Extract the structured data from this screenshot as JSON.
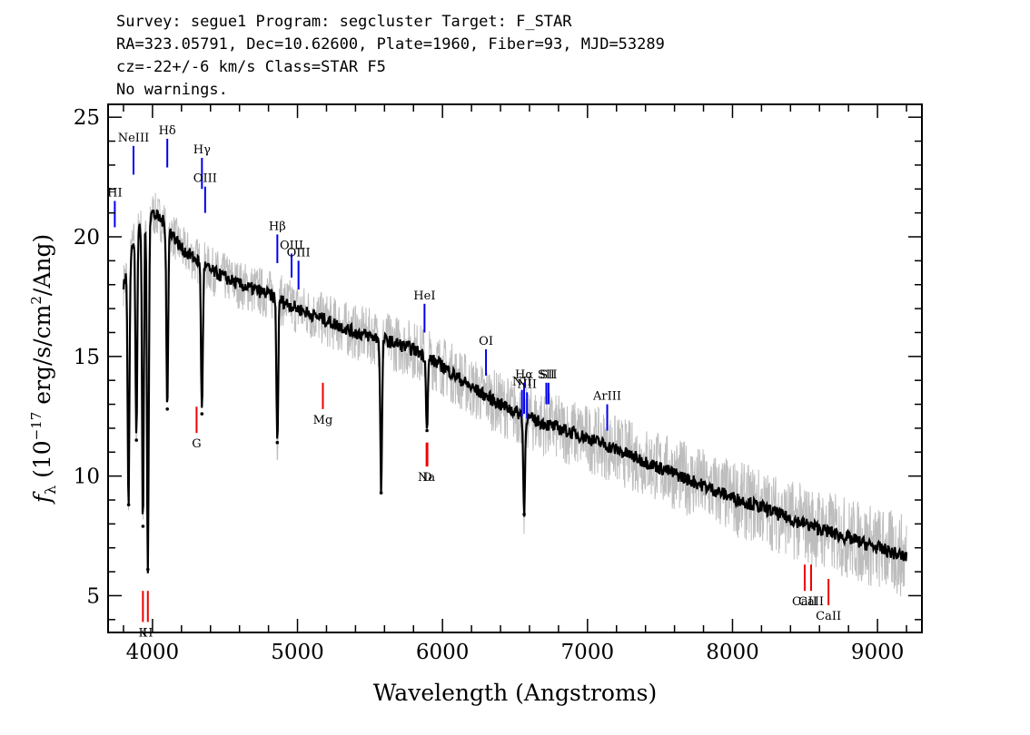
{
  "header": {
    "line1": "Survey: segue1 Program: segcluster Target: F_STAR",
    "line2": "RA=323.05791, Dec=10.62600, Plate=1960, Fiber=93, MJD=53289",
    "line3": "cz=-22+/-6 km/s Class=STAR F5",
    "line4": "No warnings."
  },
  "chart_data": {
    "type": "line",
    "xlabel": "Wavelength (Angstroms)",
    "ylabel": "f_λ (10^-17 erg/s/cm^2/Ang)",
    "xlim": [
      3700,
      9300
    ],
    "ylim": [
      3.5,
      25.5
    ],
    "x_ticks": [
      4000,
      5000,
      6000,
      7000,
      8000,
      9000
    ],
    "y_ticks": [
      5,
      10,
      15,
      20,
      25
    ],
    "grid": false,
    "legend": "none",
    "series": [
      {
        "role": "flux",
        "color": "#bdbdbd",
        "x": [
          3800,
          3900,
          4000,
          4100,
          4200,
          4400,
          4600,
          4800,
          5000,
          5200,
          5400,
          5600,
          5800,
          6000,
          6200,
          6400,
          6600,
          6800,
          7000,
          7200,
          7400,
          7600,
          7800,
          8000,
          8200,
          8400,
          8600,
          8800,
          9000,
          9200
        ],
        "y": [
          18.0,
          20.5,
          21.0,
          20.5,
          19.5,
          18.6,
          18.0,
          17.6,
          17.0,
          16.5,
          16.0,
          15.7,
          15.3,
          14.6,
          13.7,
          13.0,
          12.4,
          12.0,
          11.6,
          11.1,
          10.6,
          10.1,
          9.6,
          9.1,
          8.7,
          8.2,
          7.8,
          7.4,
          7.0,
          6.6
        ]
      },
      {
        "role": "model",
        "color": "#000000",
        "x": [
          3800,
          3900,
          4000,
          4100,
          4200,
          4400,
          4600,
          4800,
          5000,
          5200,
          5400,
          5600,
          5800,
          6000,
          6200,
          6400,
          6600,
          6800,
          7000,
          7200,
          7400,
          7600,
          7800,
          8000,
          8200,
          8400,
          8600,
          8800,
          9000,
          9200
        ],
        "y": [
          18.0,
          20.5,
          21.0,
          20.5,
          19.5,
          18.6,
          18.0,
          17.6,
          17.0,
          16.5,
          16.0,
          15.7,
          15.3,
          14.6,
          13.7,
          13.0,
          12.4,
          12.0,
          11.6,
          11.1,
          10.6,
          10.1,
          9.6,
          9.1,
          8.7,
          8.2,
          7.8,
          7.4,
          7.0,
          6.6
        ]
      }
    ],
    "absorption_features": [
      {
        "x": 3835,
        "y": 8.8
      },
      {
        "x": 3889,
        "y": 11.5
      },
      {
        "x": 3934,
        "y": 7.9
      },
      {
        "x": 3968,
        "y": 6.1
      },
      {
        "x": 4102,
        "y": 12.8
      },
      {
        "x": 4341,
        "y": 12.6
      },
      {
        "x": 4861,
        "y": 11.4
      },
      {
        "x": 5577,
        "y": 9.3
      },
      {
        "x": 5893,
        "y": 11.9
      },
      {
        "x": 6563,
        "y": 8.4
      }
    ],
    "emission_labels": [
      {
        "label": "HI",
        "x": 3740,
        "y1": 20.4,
        "y2": 21.5
      },
      {
        "label": "NeIII",
        "x": 3869,
        "y1": 22.6,
        "y2": 23.8
      },
      {
        "label": "Hδ",
        "x": 4102,
        "y1": 22.9,
        "y2": 24.1
      },
      {
        "label": "Hγ",
        "x": 4341,
        "y1": 22.0,
        "y2": 23.3
      },
      {
        "label": "OIII",
        "x": 4363,
        "y1": 21.0,
        "y2": 22.1
      },
      {
        "label": "Hβ",
        "x": 4861,
        "y1": 18.9,
        "y2": 20.1
      },
      {
        "label": "OIII",
        "x": 4959,
        "y1": 18.3,
        "y2": 19.3
      },
      {
        "label": "OIII",
        "x": 5007,
        "y1": 17.8,
        "y2": 19.0
      },
      {
        "label": "HeI",
        "x": 5876,
        "y1": 16.0,
        "y2": 17.2
      },
      {
        "label": "OI",
        "x": 6300,
        "y1": 14.2,
        "y2": 15.3
      },
      {
        "label": "NII",
        "x": 6548,
        "y1": 12.5,
        "y2": 13.6
      },
      {
        "label": "Hα",
        "x": 6563,
        "y1": 12.6,
        "y2": 13.9
      },
      {
        "label": "NII",
        "x": 6583,
        "y1": 12.4,
        "y2": 13.5
      },
      {
        "label": "SII",
        "x": 6716,
        "y1": 13.0,
        "y2": 13.9
      },
      {
        "label": "SII",
        "x": 6731,
        "y1": 13.0,
        "y2": 13.9
      },
      {
        "label": "ArIII",
        "x": 7136,
        "y1": 11.9,
        "y2": 13.0
      }
    ],
    "absorption_labels": [
      {
        "label": "K",
        "x": 3934,
        "y1": 3.9,
        "y2": 5.2
      },
      {
        "label": "H",
        "x": 3968,
        "y1": 3.9,
        "y2": 5.2
      },
      {
        "label": "G",
        "x": 4304,
        "y1": 11.8,
        "y2": 12.9
      },
      {
        "label": "Mg",
        "x": 5175,
        "y1": 12.8,
        "y2": 13.9
      },
      {
        "label": "Na",
        "x": 5890,
        "y1": 10.4,
        "y2": 11.4
      },
      {
        "label": "D",
        "x": 5896,
        "y1": 10.4,
        "y2": 11.4
      },
      {
        "label": "CaII",
        "x": 8498,
        "y1": 5.2,
        "y2": 6.3
      },
      {
        "label": "CaII",
        "x": 8542,
        "y1": 5.2,
        "y2": 6.3
      },
      {
        "label": "CaII",
        "x": 8662,
        "y1": 4.6,
        "y2": 5.7
      }
    ]
  }
}
